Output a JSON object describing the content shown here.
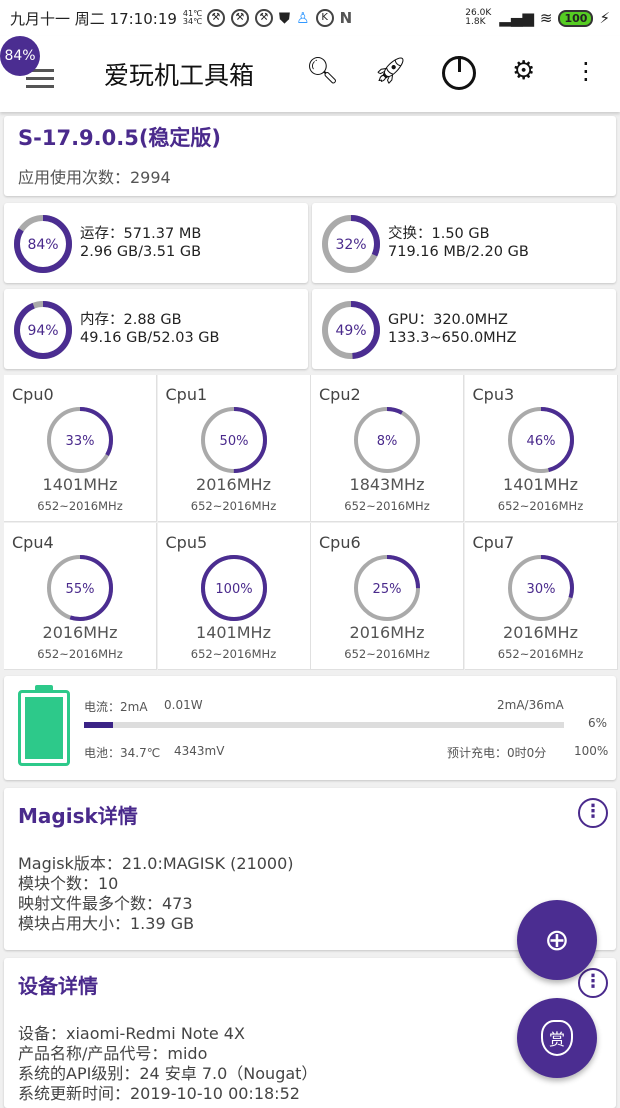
{
  "status": {
    "text": "九月十一 周二 17:10:19",
    "temps": "41℃ 34℃",
    "net": "26.0K 1.8K",
    "battery": "100"
  },
  "header": {
    "badge": "84%",
    "title": "爱玩机工具箱"
  },
  "version": {
    "title": "S-17.9.0.5(稳定版)",
    "usage": "应用使用次数：2994"
  },
  "memory": [
    {
      "pct": 84,
      "label": "84%",
      "line1": "运存：571.37 MB",
      "line2": "2.96 GB/3.51 GB"
    },
    {
      "pct": 32,
      "label": "32%",
      "line1": "交换：1.50 GB",
      "line2": "719.16 MB/2.20 GB"
    },
    {
      "pct": 94,
      "label": "94%",
      "line1": "内存：2.88 GB",
      "line2": "49.16 GB/52.03 GB"
    },
    {
      "pct": 49,
      "label": "49%",
      "line1": "GPU：320.0MHZ",
      "line2": "133.3~650.0MHZ"
    }
  ],
  "cpus": [
    {
      "name": "Cpu0",
      "pct": 33,
      "label": "33%",
      "freq": "1401MHz",
      "range": "652~2016MHz"
    },
    {
      "name": "Cpu1",
      "pct": 50,
      "label": "50%",
      "freq": "2016MHz",
      "range": "652~2016MHz"
    },
    {
      "name": "Cpu2",
      "pct": 8,
      "label": "8%",
      "freq": "1843MHz",
      "range": "652~2016MHz"
    },
    {
      "name": "Cpu3",
      "pct": 46,
      "label": "46%",
      "freq": "1401MHz",
      "range": "652~2016MHz"
    },
    {
      "name": "Cpu4",
      "pct": 55,
      "label": "55%",
      "freq": "2016MHz",
      "range": "652~2016MHz"
    },
    {
      "name": "Cpu5",
      "pct": 100,
      "label": "100%",
      "freq": "1401MHz",
      "range": "652~2016MHz"
    },
    {
      "name": "Cpu6",
      "pct": 25,
      "label": "25%",
      "freq": "2016MHz",
      "range": "652~2016MHz"
    },
    {
      "name": "Cpu7",
      "pct": 30,
      "label": "30%",
      "freq": "2016MHz",
      "range": "652~2016MHz"
    }
  ],
  "battery": {
    "current": "电流：2mA",
    "power": "0.01W",
    "ratio": "2mA/36mA",
    "pct_text": "6%",
    "pct": 6,
    "temp": "电池：34.7℃",
    "voltage": "4343mV",
    "eta": "预计充电：0时0分",
    "level": "100%"
  },
  "magisk": {
    "title": "Magisk详情",
    "lines": [
      "Magisk版本：21.0:MAGISK (21000)",
      "模块个数：10",
      "映射文件最多个数：473",
      "模块占用大小：1.39 GB"
    ]
  },
  "device": {
    "title": "设备详情",
    "lines": [
      "设备：xiaomi-Redmi Note 4X",
      "产品名称/产品代号：mido",
      "系统的API级别：24    安卓 7.0（Nougat）",
      "系统更新时间：2019-10-10 00:18:52"
    ]
  },
  "fab2": "赏",
  "colors": {
    "accent": "#4b2d91",
    "ring_track": "#aaaaaa",
    "battery": "#2dc98a"
  }
}
